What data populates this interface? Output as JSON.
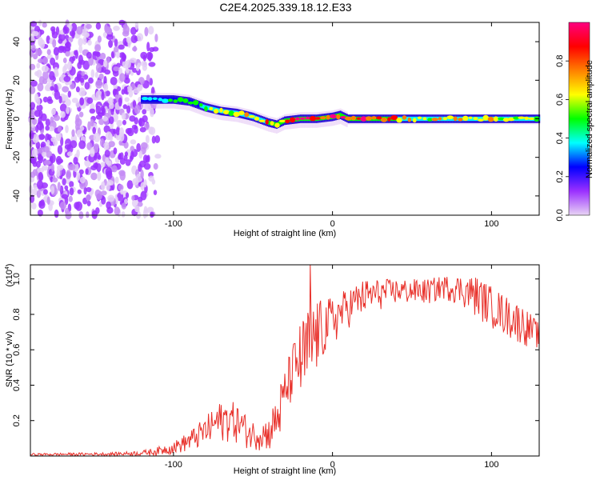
{
  "chart_data": [
    {
      "type": "heatmap",
      "title": "C2E4.2025.339.18.12.E33",
      "xlabel": "Height of straight line (km)",
      "ylabel": "Frequency (Hz)",
      "xlim": [
        -190,
        130
      ],
      "ylim": [
        -50,
        50
      ],
      "xticks": [
        -100,
        0,
        100
      ],
      "yticks": [
        -40,
        -20,
        0,
        20,
        40
      ],
      "colorbar": {
        "label": "Normalized spectral amplitude",
        "range": [
          0,
          1
        ],
        "ticks": [
          "0.0",
          "0.2",
          "0.4",
          "0.6",
          "0.8"
        ],
        "colors": [
          "#e8d4f4",
          "#9b30ff",
          "#0000ff",
          "#00ffff",
          "#00ff00",
          "#ffff00",
          "#ff8000",
          "#ff0000",
          "#ff0080"
        ]
      },
      "noise_region_x": [
        -190,
        -108
      ],
      "ridge": {
        "x": [
          -120,
          -110,
          -100,
          -90,
          -80,
          -70,
          -60,
          -50,
          -40,
          -35,
          -30,
          -20,
          -10,
          0,
          5,
          10,
          20,
          50,
          100,
          130
        ],
        "freq": [
          10,
          10,
          10,
          9,
          6,
          4,
          3,
          1,
          -2,
          -3,
          -1,
          0,
          0,
          1,
          2,
          0,
          0,
          0,
          0,
          0
        ],
        "amplitude": [
          0.4,
          0.45,
          0.5,
          0.5,
          0.6,
          0.65,
          0.7,
          0.75,
          0.8,
          0.8,
          0.85,
          0.95,
          1.0,
          0.95,
          0.9,
          0.9,
          0.9,
          0.75,
          0.7,
          0.65
        ]
      }
    },
    {
      "type": "line",
      "xlabel": "Height of straight line (km)",
      "ylabel": "SNR (10 * v/v)",
      "scale_label": "(x10",
      "scale_exponent": "4",
      "scale_close": ")",
      "xlim": [
        -190,
        130
      ],
      "ylim": [
        0,
        1.08
      ],
      "xticks": [
        -100,
        0,
        100
      ],
      "yticks": [
        0.2,
        0.4,
        0.6,
        0.8,
        1.0
      ],
      "color": "#e8302a",
      "envelope": {
        "x": [
          -190,
          -140,
          -120,
          -110,
          -100,
          -90,
          -80,
          -72,
          -65,
          -58,
          -52,
          -45,
          -40,
          -35,
          -30,
          -28,
          -22,
          -18,
          -15,
          -12,
          -8,
          0,
          10,
          20,
          30,
          40,
          50,
          60,
          70,
          80,
          90,
          100,
          110,
          120,
          130
        ],
        "min": [
          0.0,
          0.0,
          0.0,
          0.0,
          0.01,
          0.02,
          0.04,
          0.06,
          0.08,
          0.06,
          0.03,
          0.03,
          0.02,
          0.03,
          0.12,
          0.25,
          0.3,
          0.2,
          0.25,
          0.35,
          0.5,
          0.6,
          0.72,
          0.78,
          0.82,
          0.85,
          0.85,
          0.85,
          0.88,
          0.85,
          0.78,
          0.72,
          0.66,
          0.62,
          0.6
        ],
        "max": [
          0.015,
          0.02,
          0.03,
          0.05,
          0.08,
          0.14,
          0.22,
          0.3,
          0.32,
          0.28,
          0.2,
          0.2,
          0.22,
          0.35,
          0.5,
          0.55,
          0.72,
          0.8,
          0.88,
          0.9,
          0.88,
          0.9,
          0.95,
          1.0,
          1.0,
          1.0,
          1.0,
          1.0,
          1.02,
          1.02,
          1.02,
          0.96,
          0.9,
          0.85,
          0.75
        ]
      },
      "spike": {
        "x": -14,
        "y": 1.08
      }
    }
  ]
}
